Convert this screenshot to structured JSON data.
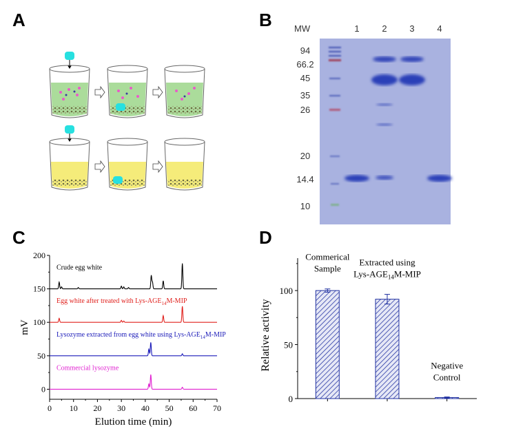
{
  "panel_labels": [
    "A",
    "B",
    "C",
    "D"
  ],
  "gel": {
    "mw_label": "MW",
    "lanes": [
      "1",
      "2",
      "3",
      "4"
    ],
    "markers": [
      "94",
      "66.2",
      "45",
      "35",
      "26",
      "20",
      "14.4",
      "10"
    ]
  },
  "colors": {
    "black_trace": "#000000",
    "red_trace": "#e0201c",
    "blue_trace": "#1a1ab8",
    "magenta_trace": "#e020d0",
    "bar_fill": "#1f2fa0",
    "gel_bg": "#a9b2e0",
    "band": "#2a3fb8",
    "beaker_green": "#9cd68a",
    "beaker_yellow": "#f5ec7a",
    "cyan": "#27e0e0"
  },
  "chart_data": [
    {
      "type": "line",
      "panel": "C",
      "xlabel": "Elution time (min)",
      "ylabel": "mV",
      "xlim": [
        0,
        70
      ],
      "ylim": [
        -15,
        200
      ],
      "x_ticks": [
        0,
        10,
        20,
        30,
        40,
        50,
        60,
        70
      ],
      "y_ticks": [
        0,
        50,
        100,
        150,
        200
      ],
      "series": [
        {
          "name": "Crude egg white",
          "label_parts": [
            "Crude egg white"
          ],
          "baseline": 150,
          "color": "#000000",
          "peaks": [
            [
              4,
              10
            ],
            [
              5,
              3
            ],
            [
              12,
              2
            ],
            [
              30,
              4
            ],
            [
              31,
              3
            ],
            [
              33,
              2
            ],
            [
              42.5,
              20
            ],
            [
              43,
              10
            ],
            [
              47.5,
              12
            ],
            [
              55.5,
              38
            ]
          ]
        },
        {
          "name": "Egg white after treated with Lys-AGE14M-MIP",
          "label_parts": [
            "Egg white after treated with Lys-AGE",
            "14",
            "M-MIP"
          ],
          "baseline": 100,
          "color": "#e0201c",
          "peaks": [
            [
              4,
              6
            ],
            [
              30,
              3
            ],
            [
              31,
              2
            ],
            [
              47.5,
              10
            ],
            [
              55.5,
              24
            ]
          ]
        },
        {
          "name": "Lysozyme extracted from egg white using Lys-AGE14M-MIP",
          "label_parts": [
            "Lysozyme extracted from egg white using Lys-AGE",
            "14",
            "M-MIP"
          ],
          "baseline": 50,
          "color": "#1a1ab8",
          "peaks": [
            [
              41.5,
              10
            ],
            [
              42.3,
              20
            ],
            [
              55.5,
              3
            ]
          ]
        },
        {
          "name": "Commercial lysozyme",
          "label_parts": [
            "Commercial lysozyme"
          ],
          "baseline": 0,
          "color": "#e020d0",
          "peaks": [
            [
              41.5,
              8
            ],
            [
              42.3,
              22
            ],
            [
              55.5,
              3
            ]
          ]
        }
      ]
    },
    {
      "type": "bar",
      "panel": "D",
      "ylabel": "Relative activity",
      "ylim": [
        0,
        130
      ],
      "y_ticks": [
        0,
        50,
        100
      ],
      "categories": [
        "Commerical Sample",
        "Extracted using Lys-AGE14M-MIP",
        "Negative Control"
      ],
      "category_lines": [
        [
          "Commerical",
          "Sample"
        ],
        [
          "Extracted using",
          "Lys-AGE|14|M-MIP"
        ],
        [
          "Negative",
          "Control"
        ]
      ],
      "values": [
        100,
        92,
        1
      ],
      "errors": [
        1.5,
        4.5,
        0.5
      ]
    }
  ]
}
